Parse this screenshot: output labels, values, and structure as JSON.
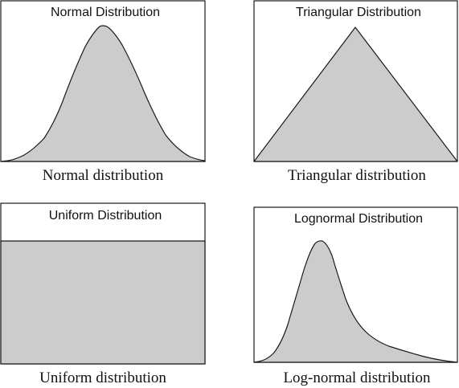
{
  "panels": [
    {
      "id": "normal",
      "title": "Normal Distribution",
      "caption": "Normal distribution"
    },
    {
      "id": "triangular",
      "title": "Triangular Distribution",
      "caption": "Triangular distribution"
    },
    {
      "id": "uniform",
      "title": "Uniform Distribution",
      "caption": "Uniform distribution"
    },
    {
      "id": "lognormal",
      "title": "Lognormal Distribution",
      "caption": "Log-normal distribution"
    }
  ],
  "colors": {
    "fill": "#cccccc",
    "stroke": "#1a1a1a",
    "background": "#ffffff"
  }
}
